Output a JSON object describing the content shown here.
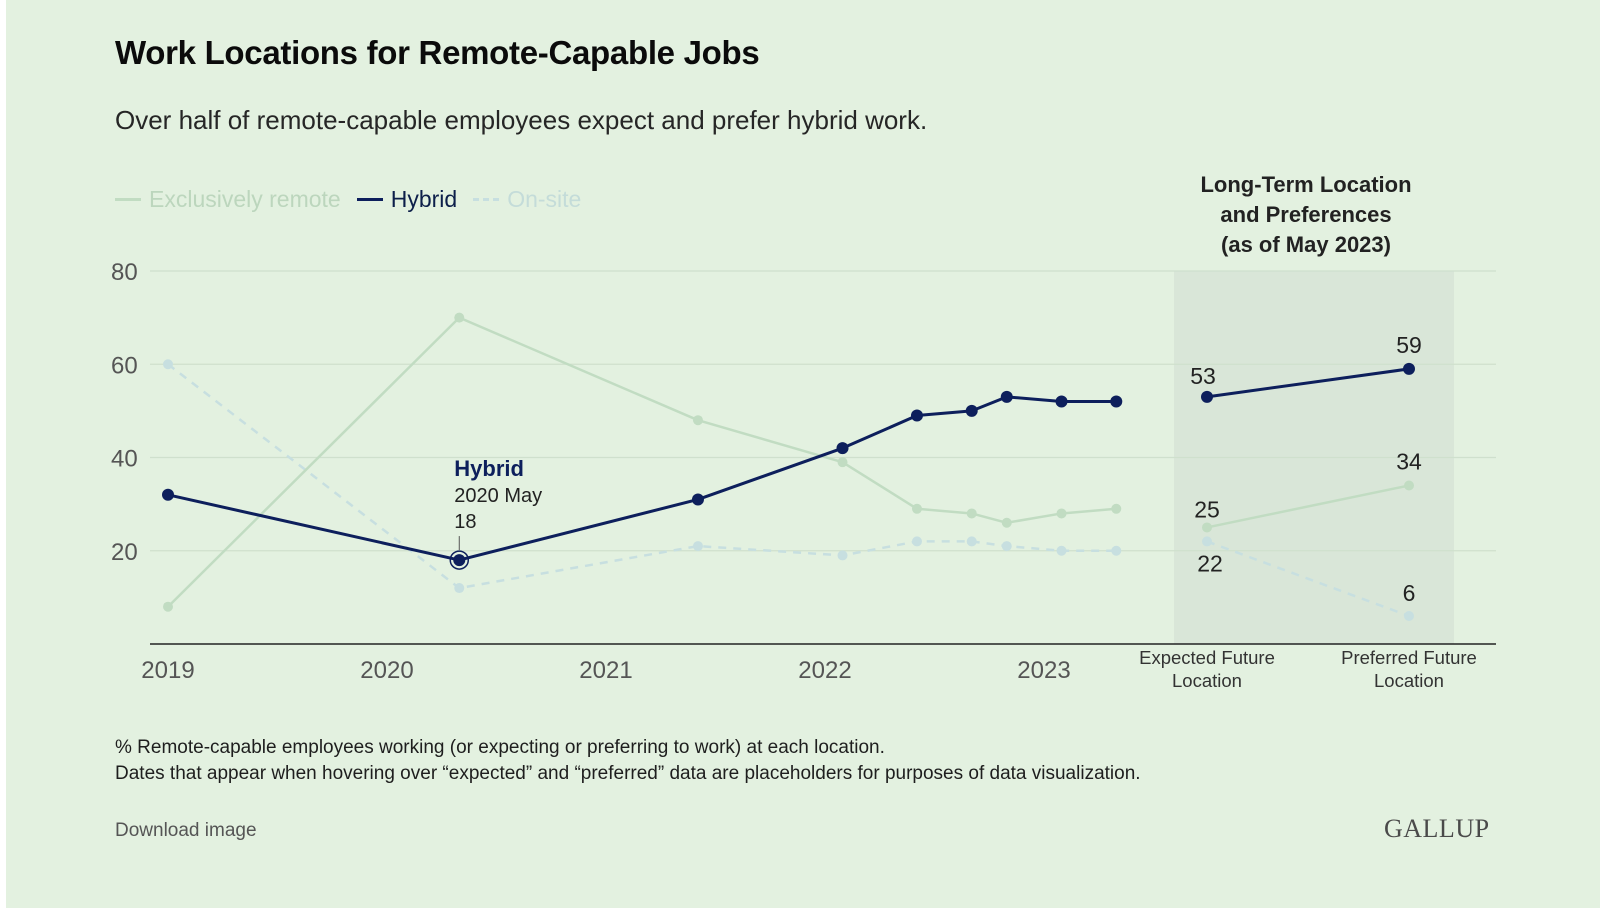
{
  "header": {
    "title": "Work Locations for Remote-Capable Jobs",
    "subtitle": "Over half of remote-capable employees expect and prefer hybrid work."
  },
  "legend": [
    {
      "key": "remote",
      "label": "Exclusively remote"
    },
    {
      "key": "hybrid",
      "label": "Hybrid"
    },
    {
      "key": "onsite",
      "label": "On-site"
    }
  ],
  "panel": {
    "title_lines": [
      "Long-Term Location",
      "and Preferences",
      "(as of May 2023)"
    ]
  },
  "tooltip": {
    "series": "Hybrid",
    "date": "2020 May",
    "value": "18"
  },
  "footnote": {
    "line1": "% Remote-capable employees working (or expecting or preferring to work) at each location.",
    "line2": "Dates that appear when hovering over “expected” and “preferred” data are placeholders for purposes of data visualization."
  },
  "actions": {
    "download_label": "Download image"
  },
  "brand": {
    "logo_text": "GALLUP"
  },
  "colors": {
    "background": "#e3f1e0",
    "panel_shade": "#d9e6d8",
    "hybrid": "#0d1f5c",
    "remote": "#c1dcc2",
    "onsite": "#c7dfe0",
    "gridline": "#cfe0cd"
  },
  "chart_data": {
    "type": "line",
    "y_ticks": [
      20,
      40,
      60,
      80
    ],
    "ylim": [
      0,
      80
    ],
    "x_tick_labels": [
      "2019",
      "2020",
      "2021",
      "2022",
      "2023"
    ],
    "x_tick_years": [
      2019,
      2020,
      2021,
      2022,
      2023
    ],
    "panel_categories": [
      "Expected Future Location",
      "Preferred Future Location"
    ],
    "series": [
      {
        "key": "remote",
        "name": "Exclusively remote",
        "style": "solid",
        "x": [
          2019.0,
          2020.33,
          2021.42,
          2022.08,
          2022.42,
          2022.67,
          2022.83,
          2023.08,
          2023.33
        ],
        "values": [
          8,
          70,
          48,
          39,
          29,
          28,
          26,
          28,
          29
        ],
        "panel_values": [
          25,
          34
        ]
      },
      {
        "key": "hybrid",
        "name": "Hybrid",
        "style": "solid",
        "x": [
          2019.0,
          2020.33,
          2021.42,
          2022.08,
          2022.42,
          2022.67,
          2022.83,
          2023.08,
          2023.33
        ],
        "values": [
          32,
          18,
          31,
          42,
          49,
          50,
          53,
          52,
          52
        ],
        "panel_values": [
          53,
          59
        ]
      },
      {
        "key": "onsite",
        "name": "On-site",
        "style": "dashed",
        "x": [
          2019.0,
          2020.33,
          2021.42,
          2022.08,
          2022.42,
          2022.67,
          2022.83,
          2023.08,
          2023.33
        ],
        "values": [
          60,
          12,
          21,
          19,
          22,
          22,
          21,
          20,
          20
        ],
        "panel_values": [
          22,
          6
        ]
      }
    ],
    "panel_labels_shown": [
      "53",
      "59",
      "25",
      "34",
      "22",
      "6"
    ],
    "grid": true,
    "legend_position": "top-left"
  }
}
